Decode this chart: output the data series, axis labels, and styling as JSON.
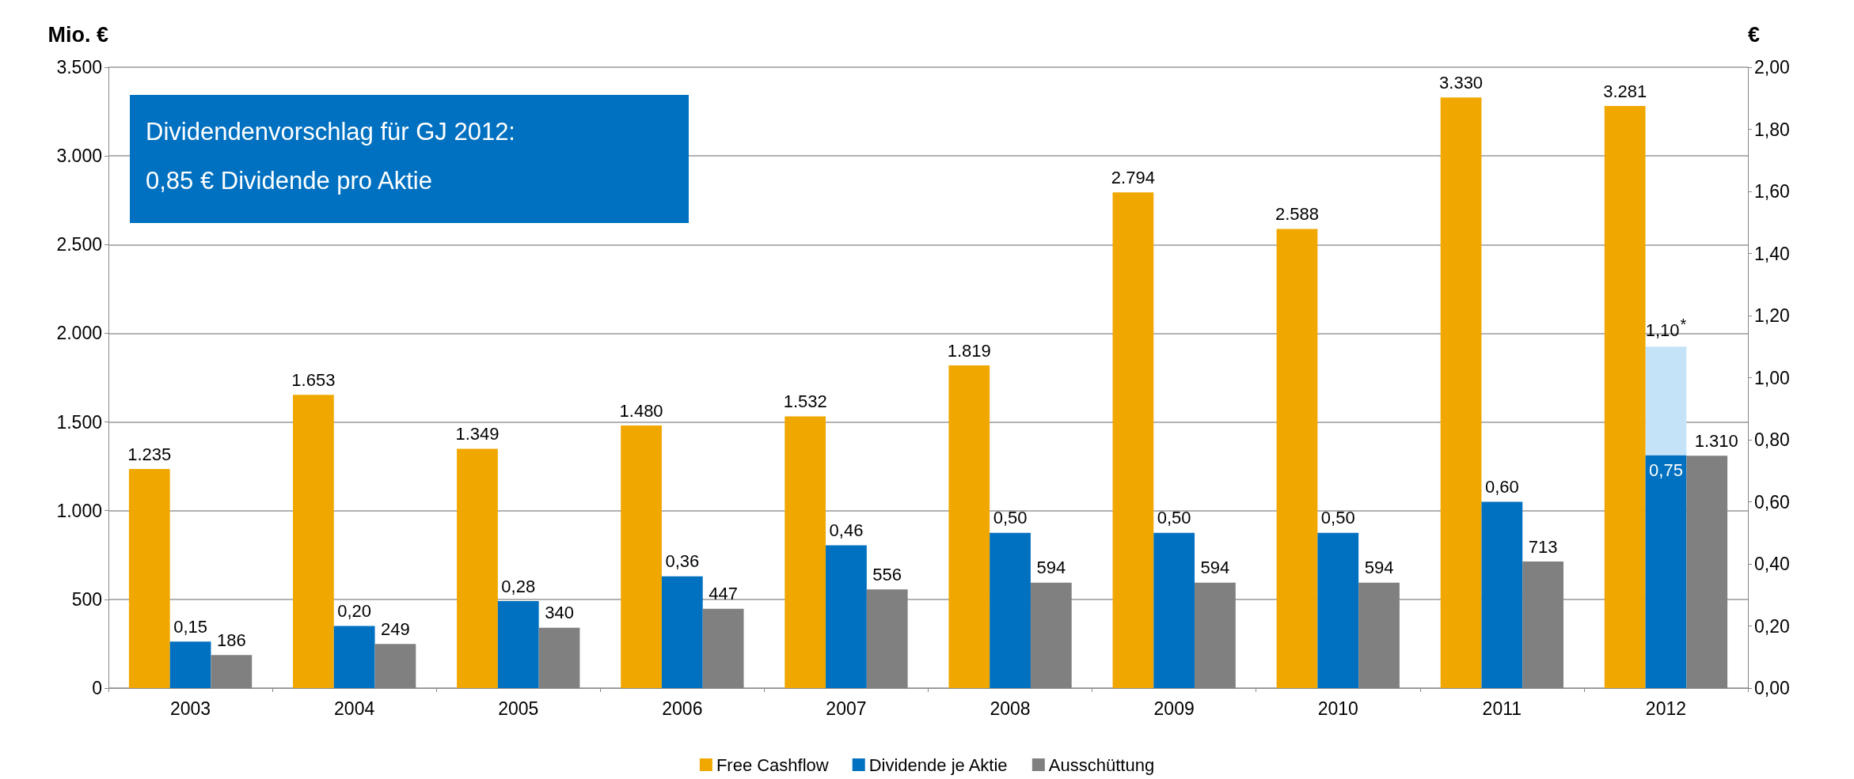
{
  "chart_data": {
    "type": "bar",
    "ylabel": "Mio. €",
    "y2label": "€",
    "categories": [
      "2003",
      "2004",
      "2005",
      "2006",
      "2007",
      "2008",
      "2009",
      "2010",
      "2011",
      "2012"
    ],
    "series": [
      {
        "name": "Free Cashflow",
        "color": "#f0a800",
        "values": [
          1235,
          1653,
          1349,
          1480,
          1532,
          1819,
          2794,
          2588,
          3330,
          3281
        ],
        "value_labels": [
          "1.235",
          "1.653",
          "1.349",
          "1.480",
          "1.532",
          "1.819",
          "2.794",
          "2.588",
          "3.330",
          "3.281"
        ]
      },
      {
        "name": "Dividende je Aktie",
        "color": "#0070c0",
        "axis": "y2",
        "values": [
          0.15,
          0.2,
          0.28,
          0.36,
          0.46,
          0.5,
          0.5,
          0.5,
          0.6,
          0.75
        ],
        "value_labels": [
          "0,15",
          "0,20",
          "0,28",
          "0,36",
          "0,46",
          "0,50",
          "0,50",
          "0,50",
          "0,60",
          "0,75"
        ]
      },
      {
        "color": "#c5e3f8",
        "axis": "y2",
        "values": [
          null,
          null,
          null,
          null,
          null,
          null,
          null,
          null,
          null,
          0.35
        ],
        "base": [
          null,
          null,
          null,
          null,
          null,
          null,
          null,
          null,
          null,
          0.75
        ]
      },
      {
        "name": "Ausschüttung",
        "color": "#808080",
        "values": [
          186,
          249,
          340,
          447,
          556,
          594,
          594,
          594,
          713,
          1310
        ],
        "value_labels": [
          "186",
          "249",
          "340",
          "447",
          "556",
          "594",
          "594",
          "594",
          "713",
          "1.310"
        ]
      }
    ],
    "ylim": [
      0,
      3500
    ],
    "yticks": [
      0,
      500,
      {
        "value": 1000,
        "label": "1.000"
      },
      {
        "value": 1500,
        "label": "1.500"
      },
      {
        "value": 2000,
        "label": "2.000"
      },
      {
        "value": 2500,
        "label": "2.500"
      },
      {
        "value": 3000,
        "label": "3.000"
      },
      {
        "value": 3500,
        "label": "3.500"
      }
    ],
    "y2lim": [
      0,
      2
    ],
    "y2ticks": [
      {
        "value": 0,
        "label": "0,00"
      },
      {
        "value": 0.2,
        "label": "0,20"
      },
      {
        "value": 0.4,
        "label": "0,40"
      },
      {
        "value": 0.6,
        "label": "0,60"
      },
      {
        "value": 0.8,
        "label": "0,80"
      },
      {
        "value": 1,
        "label": "1,00"
      },
      {
        "value": 1.2,
        "label": "1,20"
      },
      {
        "value": 1.4,
        "label": "1,40"
      },
      {
        "value": 1.6,
        "label": "1,60"
      },
      {
        "value": 1.8,
        "label": "1,80"
      },
      {
        "value": 2,
        "label": "2,00"
      }
    ],
    "grid": "y",
    "legend": "bottom",
    "annotations": [
      "Dividendenvorschlag für GJ 2012:",
      "0,85 € Dividende pro Aktie",
      "1,10$^{*}$"
    ]
  }
}
